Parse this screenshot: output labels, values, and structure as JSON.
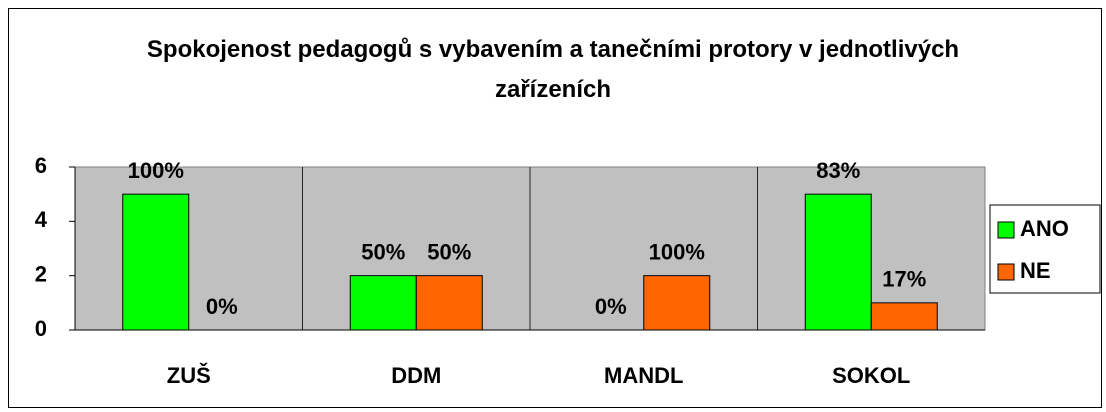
{
  "chart_data": {
    "type": "bar",
    "title": "Spokojenost pedagogů s vybavením a tanečními protory v jednotlivých zařízeních",
    "categories": [
      "ZUŠ",
      "DDM",
      "MANDL",
      "SOKOL"
    ],
    "series": [
      {
        "name": "ANO",
        "color": "#00ff00",
        "values": [
          5,
          2,
          0,
          5
        ],
        "value_labels": [
          "100%",
          "50%",
          "0%",
          "83%"
        ]
      },
      {
        "name": "NE",
        "color": "#ff6600",
        "values": [
          0,
          2,
          2,
          1
        ],
        "value_labels": [
          "0%",
          "50%",
          "100%",
          "17%"
        ]
      }
    ],
    "ylim": [
      0,
      6
    ],
    "yticks": [
      0,
      2,
      4,
      6
    ],
    "legend": "right"
  }
}
